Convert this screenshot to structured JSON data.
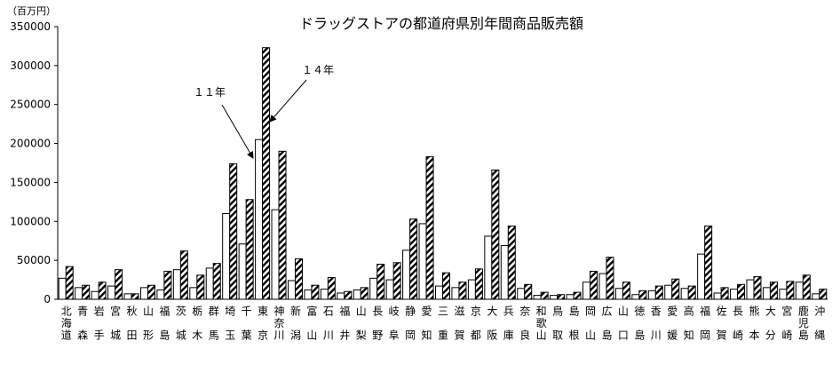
{
  "chart_data": {
    "type": "bar",
    "title": "ドラッグストアの都道府県別年間商品販売額",
    "y_unit": "（百万円）",
    "categories": [
      "北海道",
      "青森",
      "岩手",
      "宮城",
      "秋田",
      "山形",
      "福島",
      "茨城",
      "栃木",
      "群馬",
      "埼玉",
      "千葉",
      "東京",
      "神奈川",
      "新潟",
      "富山",
      "石川",
      "福井",
      "山梨",
      "長野",
      "岐阜",
      "静岡",
      "愛知",
      "三重",
      "滋賀",
      "京都",
      "大阪",
      "兵庫",
      "奈良",
      "和歌山",
      "鳥取",
      "島根",
      "岡山",
      "広島",
      "山口",
      "徳島",
      "香川",
      "愛媛",
      "高知",
      "福岡",
      "佐賀",
      "長崎",
      "熊本",
      "大分",
      "宮崎",
      "鹿児島",
      "沖縄"
    ],
    "series": [
      {
        "name": "１１年",
        "color": "#ffffff",
        "pattern": "solid",
        "values": [
          27000,
          15000,
          10000,
          17000,
          7000,
          15000,
          12000,
          38000,
          15000,
          40000,
          110000,
          71000,
          205000,
          115000,
          24000,
          12000,
          13000,
          8000,
          12000,
          27000,
          25000,
          63000,
          97000,
          17000,
          15000,
          25000,
          81000,
          69000,
          14000,
          5000,
          5000,
          6000,
          22000,
          33000,
          14000,
          6000,
          11000,
          18000,
          14000,
          58000,
          8000,
          13000,
          25000,
          15000,
          13000,
          22000,
          7000
        ]
      },
      {
        "name": "１４年",
        "color": "#000000",
        "pattern": "hatched",
        "values": [
          42000,
          18000,
          22000,
          38000,
          7000,
          18000,
          36000,
          62000,
          31000,
          46000,
          174000,
          128000,
          323000,
          190000,
          52000,
          18000,
          28000,
          10000,
          15000,
          45000,
          47000,
          103000,
          183000,
          34000,
          22000,
          39000,
          166000,
          94000,
          19000,
          9000,
          6000,
          9000,
          36000,
          54000,
          22000,
          11000,
          17000,
          26000,
          17000,
          94000,
          15000,
          19000,
          29000,
          22000,
          23000,
          31000,
          13000
        ]
      }
    ],
    "ylim": [
      0,
      350000
    ],
    "yticks": [
      0,
      50000,
      100000,
      150000,
      200000,
      250000,
      300000,
      350000
    ],
    "grid": false
  }
}
